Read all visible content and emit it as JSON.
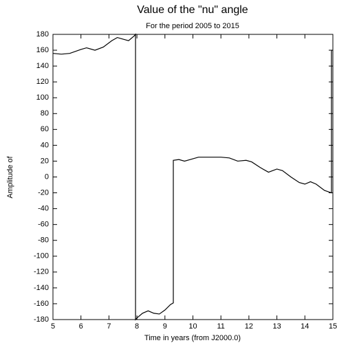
{
  "chart_data": {
    "type": "line",
    "title": "Value of the \"nu\"  angle",
    "subtitle": "For the period  2005 to 2015",
    "x_label": "Time in years (from J2000.0)",
    "y_label": "Amplitude of",
    "x": [
      5,
      5.3,
      5.6,
      6.0,
      6.2,
      6.5,
      6.8,
      7.1,
      7.3,
      7.5,
      7.7,
      7.9,
      7.95,
      7.95,
      8.0,
      8.2,
      8.4,
      8.6,
      8.8,
      9.0,
      9.2,
      9.3,
      9.3,
      9.5,
      9.7,
      9.9,
      10.2,
      10.5,
      11.0,
      11.3,
      11.6,
      11.9,
      12.1,
      12.4,
      12.7,
      13.0,
      13.2,
      13.5,
      13.8,
      14.0,
      14.2,
      14.4,
      14.7,
      14.95,
      14.95,
      15
    ],
    "values": [
      156,
      155,
      156,
      161,
      163,
      160,
      164,
      172,
      176,
      174,
      172,
      178,
      180,
      -180,
      -178,
      -172,
      -169,
      -172,
      -173,
      -168,
      -161,
      -159,
      21,
      22,
      20,
      22,
      25,
      25,
      25,
      24,
      20,
      21,
      19,
      12,
      6,
      10,
      8,
      0,
      -7,
      -9,
      -6,
      -9,
      -17,
      -20,
      160,
      160
    ],
    "color": "#000000",
    "xlim": [
      5,
      15
    ],
    "ylim": [
      -180,
      180
    ],
    "xticks": [
      5,
      6,
      7,
      8,
      9,
      10,
      11,
      12,
      13,
      14,
      15
    ],
    "yticks": [
      -180,
      -160,
      -140,
      -120,
      -100,
      -80,
      -60,
      -40,
      -20,
      0,
      20,
      40,
      60,
      80,
      100,
      120,
      140,
      160,
      180
    ]
  }
}
